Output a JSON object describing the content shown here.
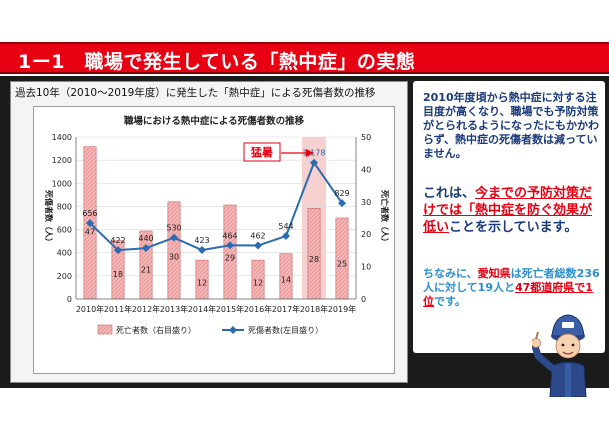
{
  "header": {
    "title": "1ー1　職場で発生している「熱中症」の実態"
  },
  "card": {
    "title": "過去10年（2010〜2019年度）に発生した「熱中症」による死傷者数の推移"
  },
  "callout": {
    "paragraph1": "2010年度頃から熱中症に対する注目度が高くなり、職場でも予防対策がとられるようになったにもかかわらず、熱中症の死傷者数は減っていません。",
    "p2_a": "これは、",
    "p2_b": "今までの予防対策だけでは「熱中症を防ぐ効果が低い",
    "p2_c": "ことを示しています。",
    "p3_a": "ちなみに、",
    "p3_b": "愛知県",
    "p3_c": "は死亡者総数236人に対して19人と",
    "p3_d": "47都道府県で1位",
    "p3_e": "です。"
  },
  "colors": {
    "title_bar": "#e60012",
    "bar_fill": "#f2b8b8",
    "bar_stroke": "#c96a6a",
    "line": "#2b6cb0",
    "highlight": "#f7d0d0"
  },
  "icons": {
    "mascot": "worker-mascot-icon"
  },
  "chart_data": {
    "type": "bar",
    "title": "職場における熱中症による死傷者数の推移",
    "categories": [
      "2010年",
      "2011年",
      "2012年",
      "2013年",
      "2014年",
      "2015年",
      "2016年",
      "2017年",
      "2018年",
      "2019年"
    ],
    "series": [
      {
        "name": "死亡者数（右目盛り）",
        "type": "bar",
        "axis": "right",
        "values": [
          47,
          18,
          21,
          30,
          12,
          29,
          12,
          14,
          28,
          25
        ]
      },
      {
        "name": "死傷者数(左目盛り）",
        "type": "line",
        "axis": "left",
        "values": [
          656,
          422,
          440,
          530,
          423,
          464,
          462,
          544,
          1178,
          829
        ]
      }
    ],
    "ylabel_left": "死傷者数（人）",
    "ylabel_right": "死亡者数（人）",
    "ylim_left": [
      0,
      1400
    ],
    "ylim_right": [
      0,
      50
    ],
    "yticks_left": [
      0,
      200,
      400,
      600,
      800,
      1000,
      1200,
      1400
    ],
    "yticks_right": [
      0,
      10,
      20,
      30,
      40,
      50
    ],
    "highlight_category": "2018年",
    "annotation": "猛暑",
    "legend_position": "bottom",
    "grid": true
  }
}
